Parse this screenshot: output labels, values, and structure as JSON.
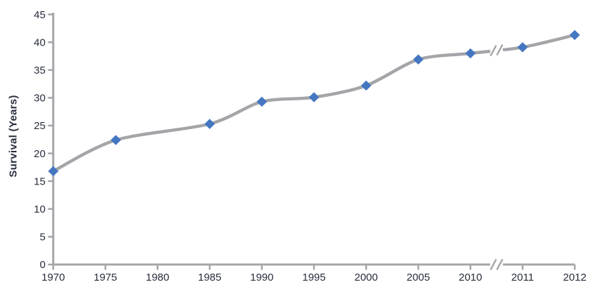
{
  "chart_data": {
    "type": "line",
    "title": "",
    "xlabel": "",
    "ylabel": "Survival (Years)",
    "x": [
      1970,
      1976,
      1985,
      1990,
      1995,
      2000,
      2005,
      2010,
      2011,
      2012
    ],
    "values": [
      16.8,
      22.4,
      25.3,
      29.3,
      30.1,
      32.2,
      36.9,
      38.0,
      39.1,
      41.3
    ],
    "xticks": [
      "1970",
      "1975",
      "1980",
      "1985",
      "1990",
      "1995",
      "2000",
      "2005",
      "2010",
      "2011",
      "2012"
    ],
    "yticks": [
      0,
      5,
      10,
      15,
      20,
      25,
      30,
      35,
      40,
      45
    ],
    "ylim": [
      0,
      45
    ],
    "axis_break_between": [
      "2010",
      "2011"
    ],
    "grid": "off",
    "legend": "none",
    "marker": "diamond",
    "colors": {
      "line": "#a3a5a8",
      "axis": "#a3a5a8",
      "marker": "#4577c1",
      "text": "#272d3c",
      "background": "#ffffff"
    }
  }
}
